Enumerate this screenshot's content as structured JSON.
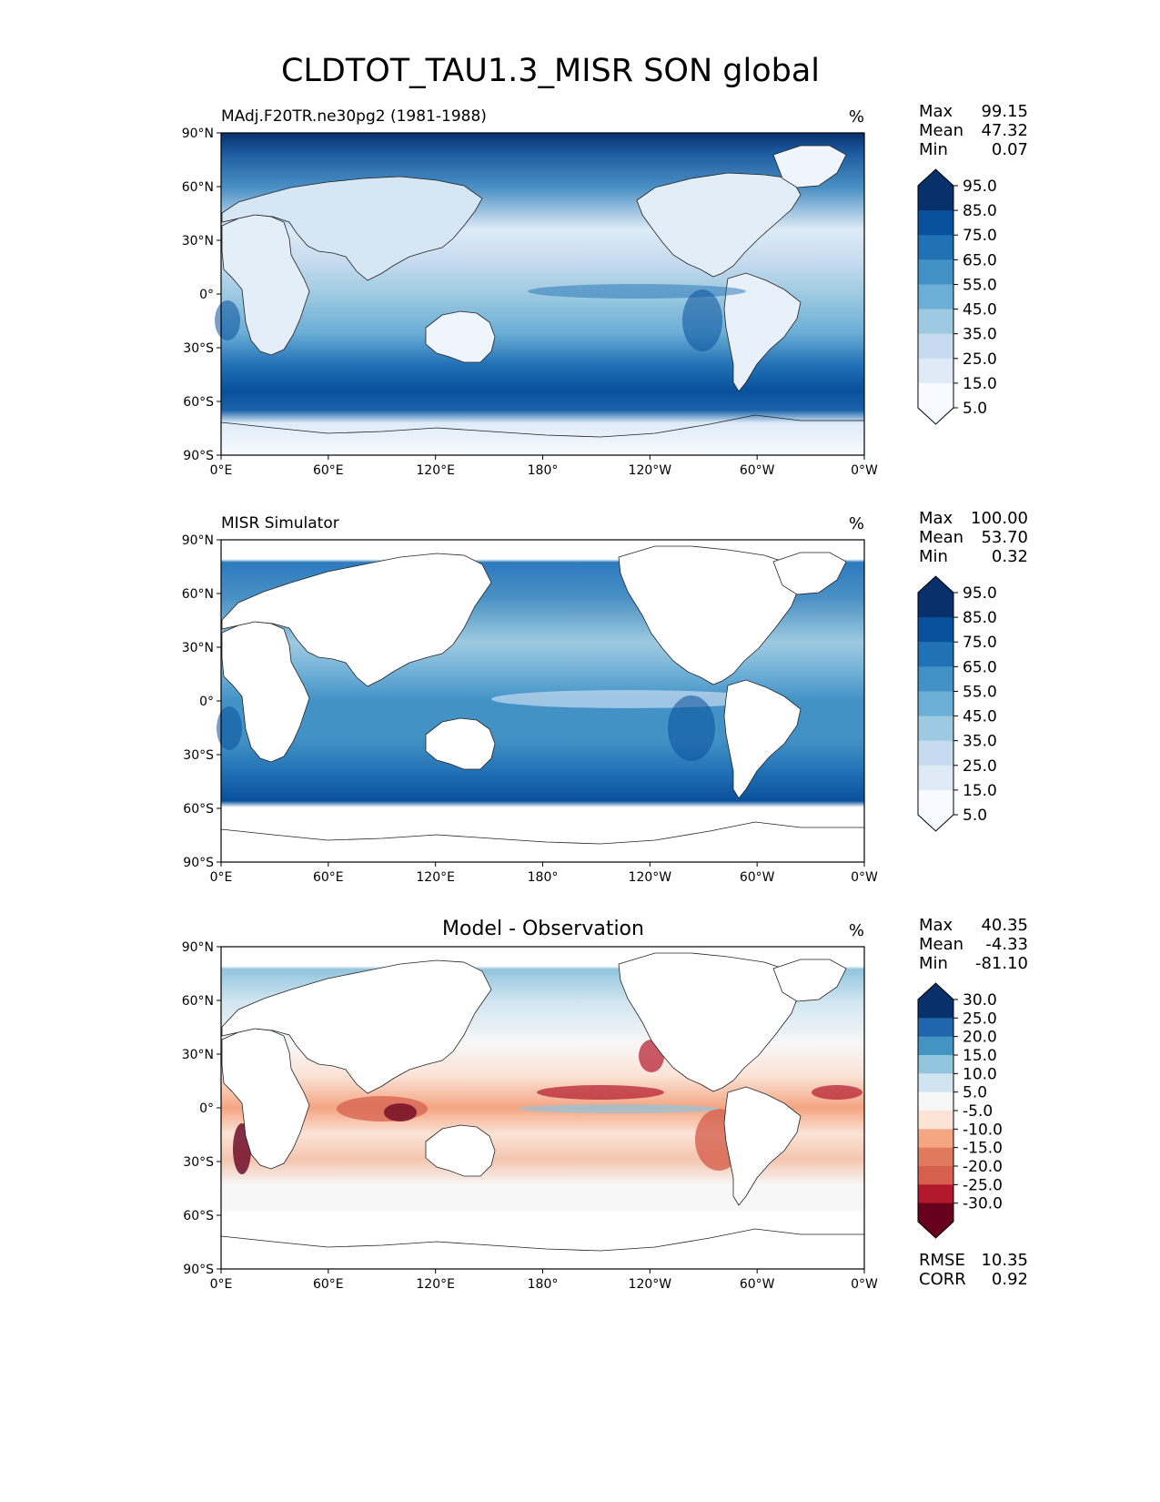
{
  "title": "CLDTOT_TAU1.3_MISR SON global",
  "lat_ticks": [
    "90°N",
    "60°N",
    "30°N",
    "0°",
    "30°S",
    "60°S",
    "90°S"
  ],
  "lon_ticks": [
    "0°E",
    "60°E",
    "120°E",
    "180°",
    "120°W",
    "60°W",
    "0°W"
  ],
  "panels": [
    {
      "id": "test",
      "title_left": "MAdj.F20TR.ne30pg2 (1981-1988)",
      "title_center": "",
      "units": "%",
      "stats": [
        {
          "label": "Max",
          "value": "99.15"
        },
        {
          "label": "Mean",
          "value": "47.32"
        },
        {
          "label": "Min",
          "value": "0.07"
        }
      ],
      "colorbar": {
        "labels": [
          "95.0",
          "85.0",
          "75.0",
          "65.0",
          "55.0",
          "45.0",
          "35.0",
          "25.0",
          "15.0",
          "5.0"
        ],
        "colors": [
          "#08306b",
          "#08519c",
          "#2171b5",
          "#4292c6",
          "#6baed6",
          "#9ecae1",
          "#c6dbef",
          "#deebf7",
          "#f7fbff"
        ]
      },
      "extra": []
    },
    {
      "id": "reference",
      "title_left": "MISR Simulator",
      "title_center": "",
      "units": "%",
      "stats": [
        {
          "label": "Max",
          "value": "100.00"
        },
        {
          "label": "Mean",
          "value": "53.70"
        },
        {
          "label": "Min",
          "value": "0.32"
        }
      ],
      "colorbar": {
        "labels": [
          "95.0",
          "85.0",
          "75.0",
          "65.0",
          "55.0",
          "45.0",
          "35.0",
          "25.0",
          "15.0",
          "5.0"
        ],
        "colors": [
          "#08306b",
          "#08519c",
          "#2171b5",
          "#4292c6",
          "#6baed6",
          "#9ecae1",
          "#c6dbef",
          "#deebf7",
          "#f7fbff"
        ]
      },
      "extra": []
    },
    {
      "id": "difference",
      "title_left": "",
      "title_center": "Model - Observation",
      "units": "%",
      "stats": [
        {
          "label": "Max",
          "value": "40.35"
        },
        {
          "label": "Mean",
          "value": "-4.33"
        },
        {
          "label": "Min",
          "value": "-81.10"
        }
      ],
      "colorbar": {
        "labels": [
          "30.0",
          "25.0",
          "20.0",
          "15.0",
          "10.0",
          "5.0",
          "-5.0",
          "-10.0",
          "-15.0",
          "-20.0",
          "-25.0",
          "-30.0"
        ],
        "colors": [
          "#08306b",
          "#2166ac",
          "#4393c3",
          "#92c5de",
          "#d1e5f0",
          "#f7f7f7",
          "#fbe3d6",
          "#f4a582",
          "#e07a5f",
          "#d6604d",
          "#b2182b",
          "#67001f"
        ]
      },
      "extra": [
        {
          "label": "RMSE",
          "value": "10.35"
        },
        {
          "label": "CORR",
          "value": "0.92"
        }
      ]
    }
  ]
}
